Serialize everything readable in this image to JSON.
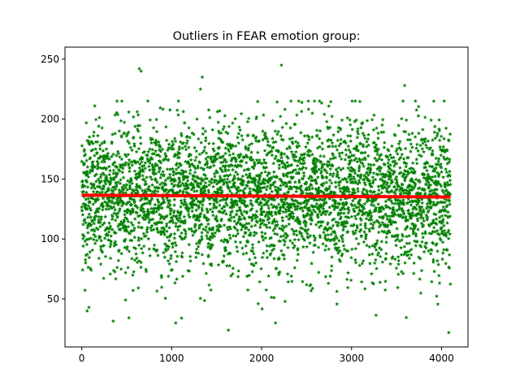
{
  "chart_data": {
    "type": "scatter",
    "title": "Outliers in FEAR emotion group:",
    "xlabel": "",
    "ylabel": "",
    "xlim": [
      -186,
      4294
    ],
    "ylim": [
      10,
      260
    ],
    "xticks": [
      0,
      1000,
      2000,
      3000,
      4000
    ],
    "yticks": [
      50,
      100,
      150,
      200,
      250
    ],
    "grid": false,
    "legend": "none",
    "point_count": 4100,
    "scatter": {
      "marker": "star",
      "color": "#008000",
      "center": 136,
      "spread": 30,
      "notable_points": [
        {
          "x": 640,
          "y": 242
        },
        {
          "x": 660,
          "y": 240
        },
        {
          "x": 2220,
          "y": 245
        },
        {
          "x": 1340,
          "y": 235
        },
        {
          "x": 1320,
          "y": 225
        },
        {
          "x": 3590,
          "y": 228
        },
        {
          "x": 4080,
          "y": 22
        },
        {
          "x": 1630,
          "y": 24
        },
        {
          "x": 60,
          "y": 40
        },
        {
          "x": 80,
          "y": 43
        },
        {
          "x": 1110,
          "y": 34
        }
      ]
    },
    "mean_line": {
      "color": "#ff0000",
      "x": [
        0,
        4100
      ],
      "y": [
        136.5,
        135
      ]
    }
  }
}
